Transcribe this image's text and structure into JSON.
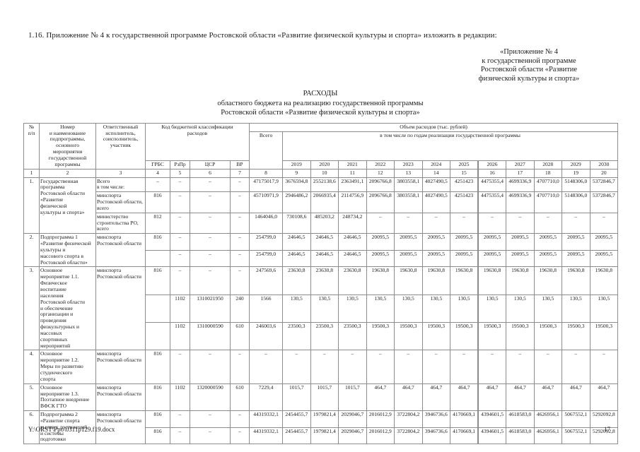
{
  "page": {
    "intro": "1.16. Приложение № 4 к государственной программе Ростовской области «Развитие физической культуры и спорта» изложить в редакции:",
    "appendix_ref": "«Приложение № 4\nк государственной программе\nРостовской области «Развитие\nфизической культуры и спорта»",
    "title": "РАСХОДЫ\nобластного бюджета на реализацию государственной программы\nРостовской области «Развитие физической культуры и спорта»",
    "footer_path": "Y:\\ORST\\Ppo\\0311p129.f19.docx",
    "page_number": "17",
    "colors": {
      "text": "#1c1c1c",
      "table_border": "#8c8c8c",
      "background": "#ffffff"
    }
  },
  "table": {
    "header": {
      "npp": "№\nп/п",
      "name": "Номер\nи наименование\nподпрограммы,\nосновного\nмероприятия\nгосударственной\nпрограммы",
      "executor": "Ответственный\nисполнитель,\nсоисполнитель,\nучастник",
      "budget_code": "Код бюджетной классификации\nрасходов",
      "grbs": "ГРБС",
      "rzpr": "РзПр",
      "csr": "ЦСР",
      "vr": "ВР",
      "volume": "Объем расходов (тыс. рублей)",
      "total": "Всего",
      "by_years": "в том числе по годам реализации государственной программы",
      "years": [
        "2019",
        "2020",
        "2021",
        "2022",
        "2023",
        "2024",
        "2025",
        "2026",
        "2027",
        "2028",
        "2029",
        "2030"
      ]
    },
    "col_numbers": [
      "1",
      "2",
      "3",
      "4",
      "5",
      "6",
      "7",
      "8",
      "9",
      "10",
      "11",
      "12",
      "13",
      "14",
      "15",
      "16",
      "17",
      "18",
      "19",
      "20"
    ],
    "groups": [
      {
        "num": "1.",
        "name": "Государственная\nпрограмма\nРостовской области\n«Развитие\nфизической\nкультуры и спорта»",
        "lines": [
          {
            "executor": "Всего\nв том числе:",
            "codes": [
              "–",
              "–",
              "–",
              "–"
            ],
            "values": [
              "47175017,9",
              "3676594,8",
              "2552138,6",
              "2363491,1",
              "2096766,8",
              "3803558,1",
              "4027490,5",
              "4251423",
              "4475355,4",
              "4699336,9",
              "4707710,0",
              "5148306,0",
              "5372846,7"
            ]
          },
          {
            "executor": "минспорта\nРостовской области,\nвсего",
            "codes": [
              "816",
              "–",
              "–",
              "–"
            ],
            "values": [
              "45710971,9",
              "2946486,2",
              "2066935,4",
              "2114756,9",
              "2096766,8",
              "3803558,1",
              "4027490,5",
              "4251423",
              "4475355,4",
              "4699336,9",
              "4707710,0",
              "5148306,0",
              "5372846,7"
            ]
          },
          {
            "executor": "министерство\nстроительства РО,\nвсего",
            "codes": [
              "812",
              "–",
              "–",
              "–"
            ],
            "values": [
              "1464046,0",
              "730108,6",
              "485203,2",
              "248734,2",
              "–",
              "–",
              "–",
              "–",
              "–",
              "–",
              "–",
              "–",
              "–"
            ]
          }
        ]
      },
      {
        "num": "2.",
        "name": "Подпрограмма 1\n«Развитие физической\nкультуры и\nмассового спорта в\nРостовской области»",
        "executor": "минспорта\nРостовской области",
        "lines": [
          {
            "codes": [
              "816",
              "–",
              "–",
              "–"
            ],
            "values": [
              "254799,0",
              "24646,5",
              "24646,5",
              "24646,5",
              "20095,5",
              "20095,5",
              "20095,5",
              "20095,5",
              "20095,5",
              "20095,5",
              "20095,5",
              "20095,5",
              "20095,5"
            ]
          },
          {
            "codes": [
              "",
              "–",
              "–",
              "–"
            ],
            "values": [
              "254799,0",
              "24646,5",
              "24646,5",
              "24646,5",
              "20095,5",
              "20095,5",
              "20095,5",
              "20095,5",
              "20095,5",
              "20095,5",
              "20095,5",
              "20095,5",
              "20095,5"
            ]
          }
        ]
      },
      {
        "num": "3.",
        "name": "Основное\nмероприятие 1.1.\nФизическое\nвоспитание\nнаселения\nРостовской области\nи обеспечение\nорганизации и\nпроведения\nфизкультурных и\nмассовых\nспортивных\nмероприятий",
        "executor": "минспорта\nРостовской области",
        "lines": [
          {
            "codes": [
              "816",
              "–",
              "–",
              "–"
            ],
            "values": [
              "247569,6",
              "23630,8",
              "23630,8",
              "23630,8",
              "19630,8",
              "19630,8",
              "19630,8",
              "19630,8",
              "19630,8",
              "19630,8",
              "19630,8",
              "19630,8",
              "19630,8"
            ]
          },
          {
            "codes": [
              "",
              "1102",
              "1310021950",
              "240"
            ],
            "values": [
              "1566",
              "130,5",
              "130,5",
              "130,5",
              "130,5",
              "130,5",
              "130,5",
              "130,5",
              "130,5",
              "130,5",
              "130,5",
              "130,5",
              "130,5"
            ]
          },
          {
            "codes": [
              "",
              "1102",
              "1310000590",
              "610"
            ],
            "values": [
              "246003,6",
              "23500,3",
              "23500,3",
              "23500,3",
              "19500,3",
              "19500,3",
              "19500,3",
              "19500,3",
              "19500,3",
              "19500,3",
              "19500,3",
              "19500,3",
              "19500,3"
            ]
          }
        ]
      },
      {
        "num": "4.",
        "name": "Основное\nмероприятие 1.2.\nМеры по развитию\nстуденческого\nспорта",
        "executor": "минспорта\nРостовской области",
        "lines": [
          {
            "codes": [
              "816",
              "–",
              "–",
              "–"
            ],
            "values": [
              "–",
              "–",
              "–",
              "–",
              "–",
              "–",
              "–",
              "–",
              "–",
              "–",
              "–",
              "–",
              "–"
            ]
          }
        ]
      },
      {
        "num": "5.",
        "name": "Основное\nмероприятие 1.3.\nПоэтапное внедрение\nВФСК ГТО",
        "executor": "минспорта\nРостовской области",
        "lines": [
          {
            "codes": [
              "816",
              "1102",
              "1320000590",
              "610"
            ],
            "values": [
              "7229,4",
              "1015,7",
              "1015,7",
              "1015,7",
              "464,7",
              "464,7",
              "464,7",
              "464,7",
              "464,7",
              "464,7",
              "464,7",
              "464,7",
              "464,7"
            ]
          }
        ]
      },
      {
        "num": "6.",
        "name": "Подпрограмма 2\n«Развитие спорта\nвысших достижений\nи системы\nподготовки",
        "executor": "минспорта\nРостовской области",
        "lines": [
          {
            "codes": [
              "816",
              "–",
              "–",
              "–"
            ],
            "values": [
              "44319332,1",
              "2454455,7",
              "1979821,4",
              "2029046,7",
              "2016012,9",
              "3722804,2",
              "3946736,6",
              "4170669,1",
              "4394601,5",
              "4618583,0",
              "4626956,1",
              "5067552,1",
              "5292092,8"
            ]
          },
          {
            "codes": [
              "816",
              "–",
              "–",
              "–"
            ],
            "values": [
              "44319332,1",
              "2454455,7",
              "1979821,4",
              "2029046,7",
              "2016012,9",
              "3722804,2",
              "3946736,6",
              "4170669,1",
              "4394601,5",
              "4618583,0",
              "4626956,1",
              "5067552,1",
              "5292092,8"
            ]
          }
        ]
      }
    ]
  }
}
